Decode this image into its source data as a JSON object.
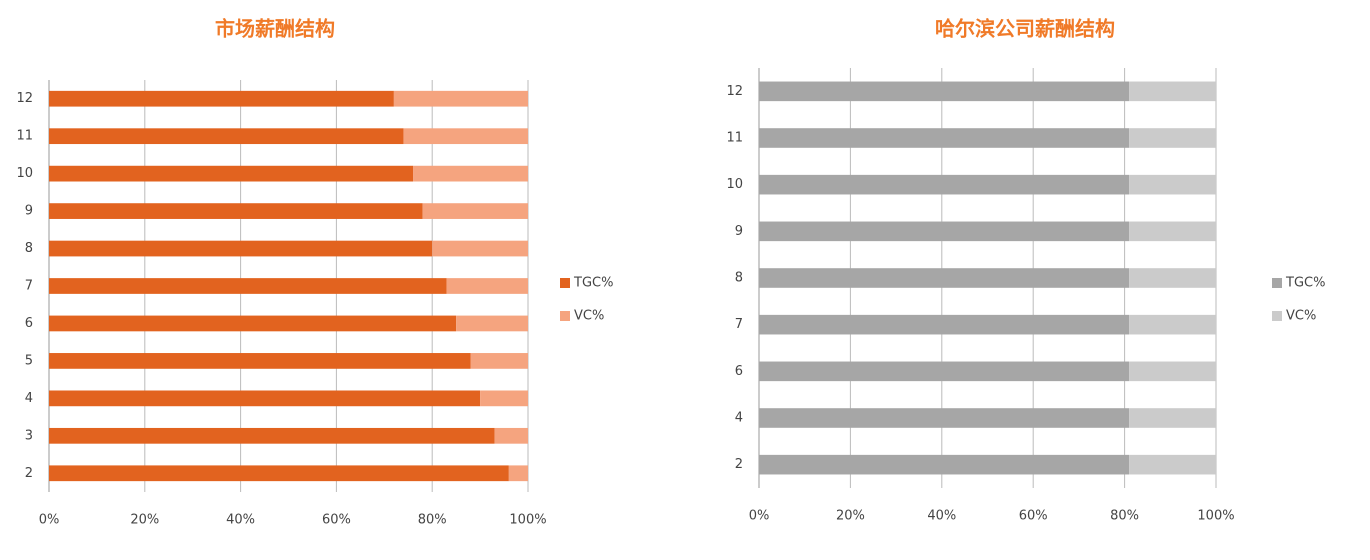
{
  "chart_data": [
    {
      "type": "bar",
      "stacked": true,
      "orientation": "horizontal",
      "title": "市场薪酬结构",
      "categories": [
        "2",
        "3",
        "4",
        "5",
        "6",
        "7",
        "8",
        "9",
        "10",
        "11",
        "12"
      ],
      "series": [
        {
          "name": "TGC%",
          "color": "#e2631f",
          "values": [
            96,
            93,
            90,
            88,
            85,
            83,
            80,
            78,
            76,
            74,
            72
          ]
        },
        {
          "name": "VC%",
          "color": "#f5a47f",
          "values": [
            4,
            7,
            10,
            12,
            15,
            17,
            20,
            22,
            24,
            26,
            28
          ]
        }
      ],
      "xlim": [
        0,
        100
      ],
      "xticks": [
        {
          "value": 0,
          "label": "0%"
        },
        {
          "value": 20,
          "label": "20%"
        },
        {
          "value": 40,
          "label": "40%"
        },
        {
          "value": 60,
          "label": "60%"
        },
        {
          "value": 80,
          "label": "80%"
        },
        {
          "value": 100,
          "label": "100%"
        }
      ],
      "grid": true,
      "legend": "right"
    },
    {
      "type": "bar",
      "stacked": true,
      "orientation": "horizontal",
      "title": "哈尔滨公司薪酬结构",
      "categories": [
        "2",
        "4",
        "6",
        "7",
        "8",
        "9",
        "10",
        "11",
        "12"
      ],
      "series": [
        {
          "name": "TGC%",
          "color": "#a6a6a6",
          "values": [
            81,
            81,
            81,
            81,
            81,
            81,
            81,
            81,
            81
          ]
        },
        {
          "name": "VC%",
          "color": "#cbcbcb",
          "values": [
            19,
            19,
            19,
            19,
            19,
            19,
            19,
            19,
            19
          ]
        }
      ],
      "xlim": [
        0,
        100
      ],
      "xticks": [
        {
          "value": 0,
          "label": "0%"
        },
        {
          "value": 20,
          "label": "20%"
        },
        {
          "value": 40,
          "label": "40%"
        },
        {
          "value": 60,
          "label": "60%"
        },
        {
          "value": 80,
          "label": "80%"
        },
        {
          "value": 100,
          "label": "100%"
        }
      ],
      "grid": true,
      "legend": "right"
    }
  ]
}
